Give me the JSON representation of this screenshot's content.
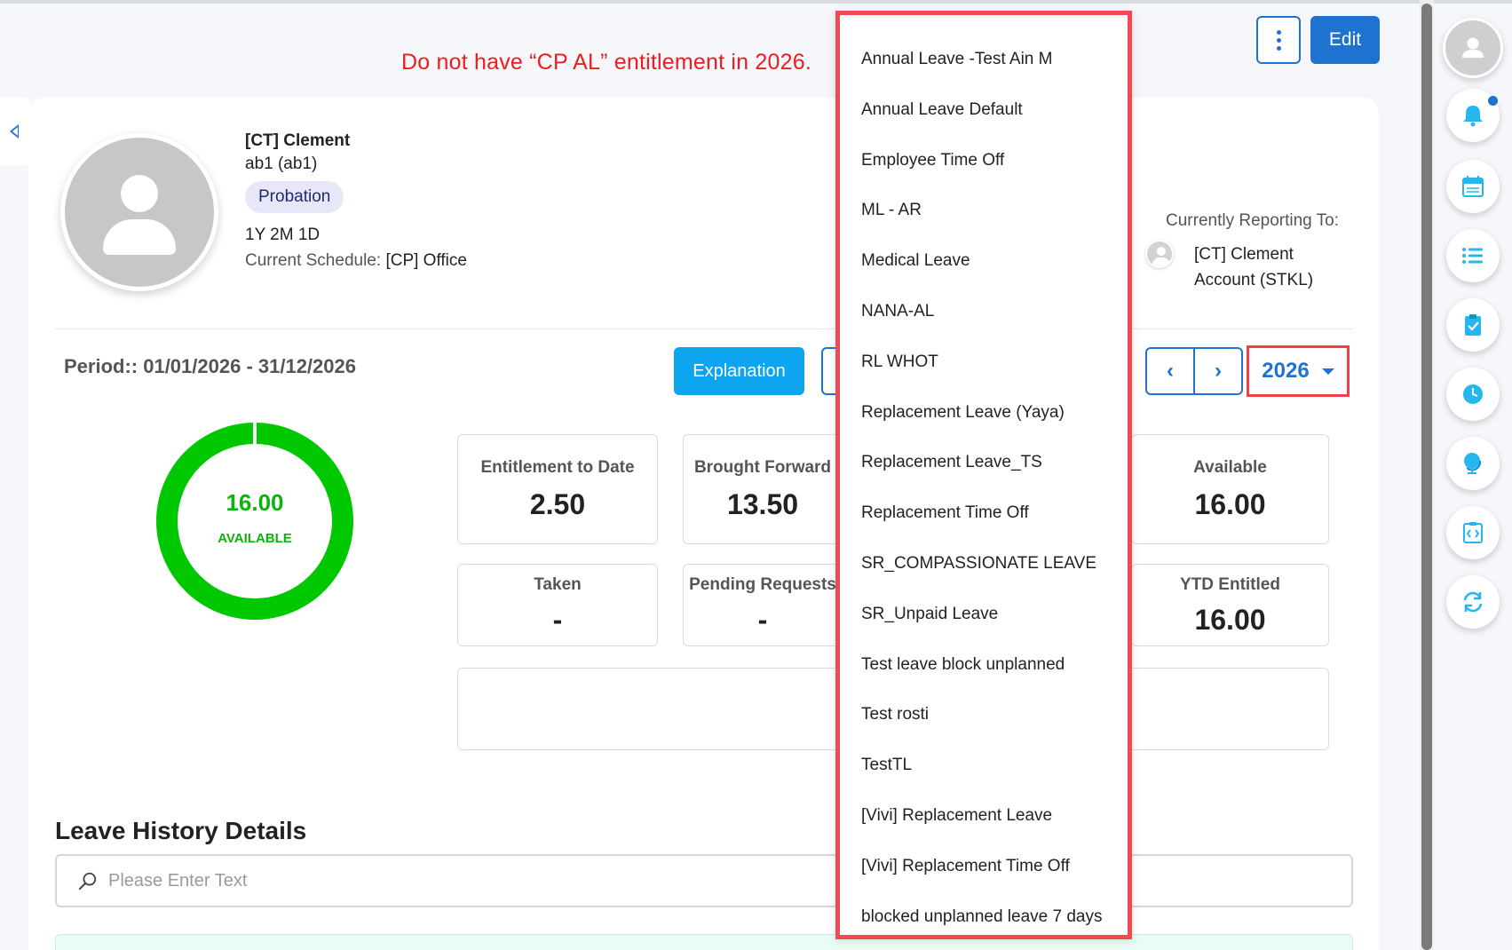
{
  "annotation": "Do not have “CP AL” entitlement in 2026.",
  "header": {
    "more_icon": "kebab-icon",
    "edit_label": "Edit"
  },
  "employee": {
    "name": "[CT] Clement",
    "code": "ab1 (ab1)",
    "status": "Probation",
    "tenure": "1Y 2M 1D",
    "schedule_label": "Current Schedule:",
    "schedule_value": "[CP] Office"
  },
  "reporting": {
    "label": "Currently Reporting To:",
    "name_line1": "[CT] Clement",
    "name_line2": "Account (STKL)"
  },
  "period": {
    "label": "Period:: 01/01/2026 - 31/12/2026",
    "explanation_label": "Explanation",
    "year": "2026"
  },
  "summary": {
    "donut_value": "16.00",
    "donut_label": "AVAILABLE",
    "available_fraction": 1.0,
    "donut_color": "#00c800"
  },
  "stats": [
    {
      "label": "Entitlement to Date",
      "value": "2.50"
    },
    {
      "label": "Brought Forward",
      "value": "13.50"
    },
    {
      "label": "Available",
      "value": "16.00"
    },
    {
      "label": "Taken",
      "value": "-"
    },
    {
      "label": "Pending Requests",
      "value": "-"
    },
    {
      "label": "YTD Entitled",
      "value": "16.00"
    }
  ],
  "history": {
    "title": "Leave History Details",
    "search_placeholder": "Please Enter Text"
  },
  "leave_types": [
    "Annual Leave -Test Ain M",
    "Annual Leave Default",
    "Employee Time Off",
    "ML - AR",
    "Medical Leave",
    "NANA-AL",
    "RL WHOT",
    "Replacement Leave (Yaya)",
    "Replacement Leave_TS",
    "Replacement Time Off",
    "SR_COMPASSIONATE LEAVE",
    "SR_Unpaid Leave",
    "Test leave block unplanned",
    "Test rosti",
    "TestTL",
    "[Vivi] Replacement Leave",
    "[Vivi] Replacement Time Off",
    "blocked unplanned leave 7 days"
  ],
  "sidebar": {
    "items": [
      "user-icon",
      "bell-icon",
      "calendar-icon",
      "list-icon",
      "clipboard-check-icon",
      "clock-icon",
      "globe-icon",
      "code-clipboard-icon",
      "refresh-icon"
    ]
  }
}
